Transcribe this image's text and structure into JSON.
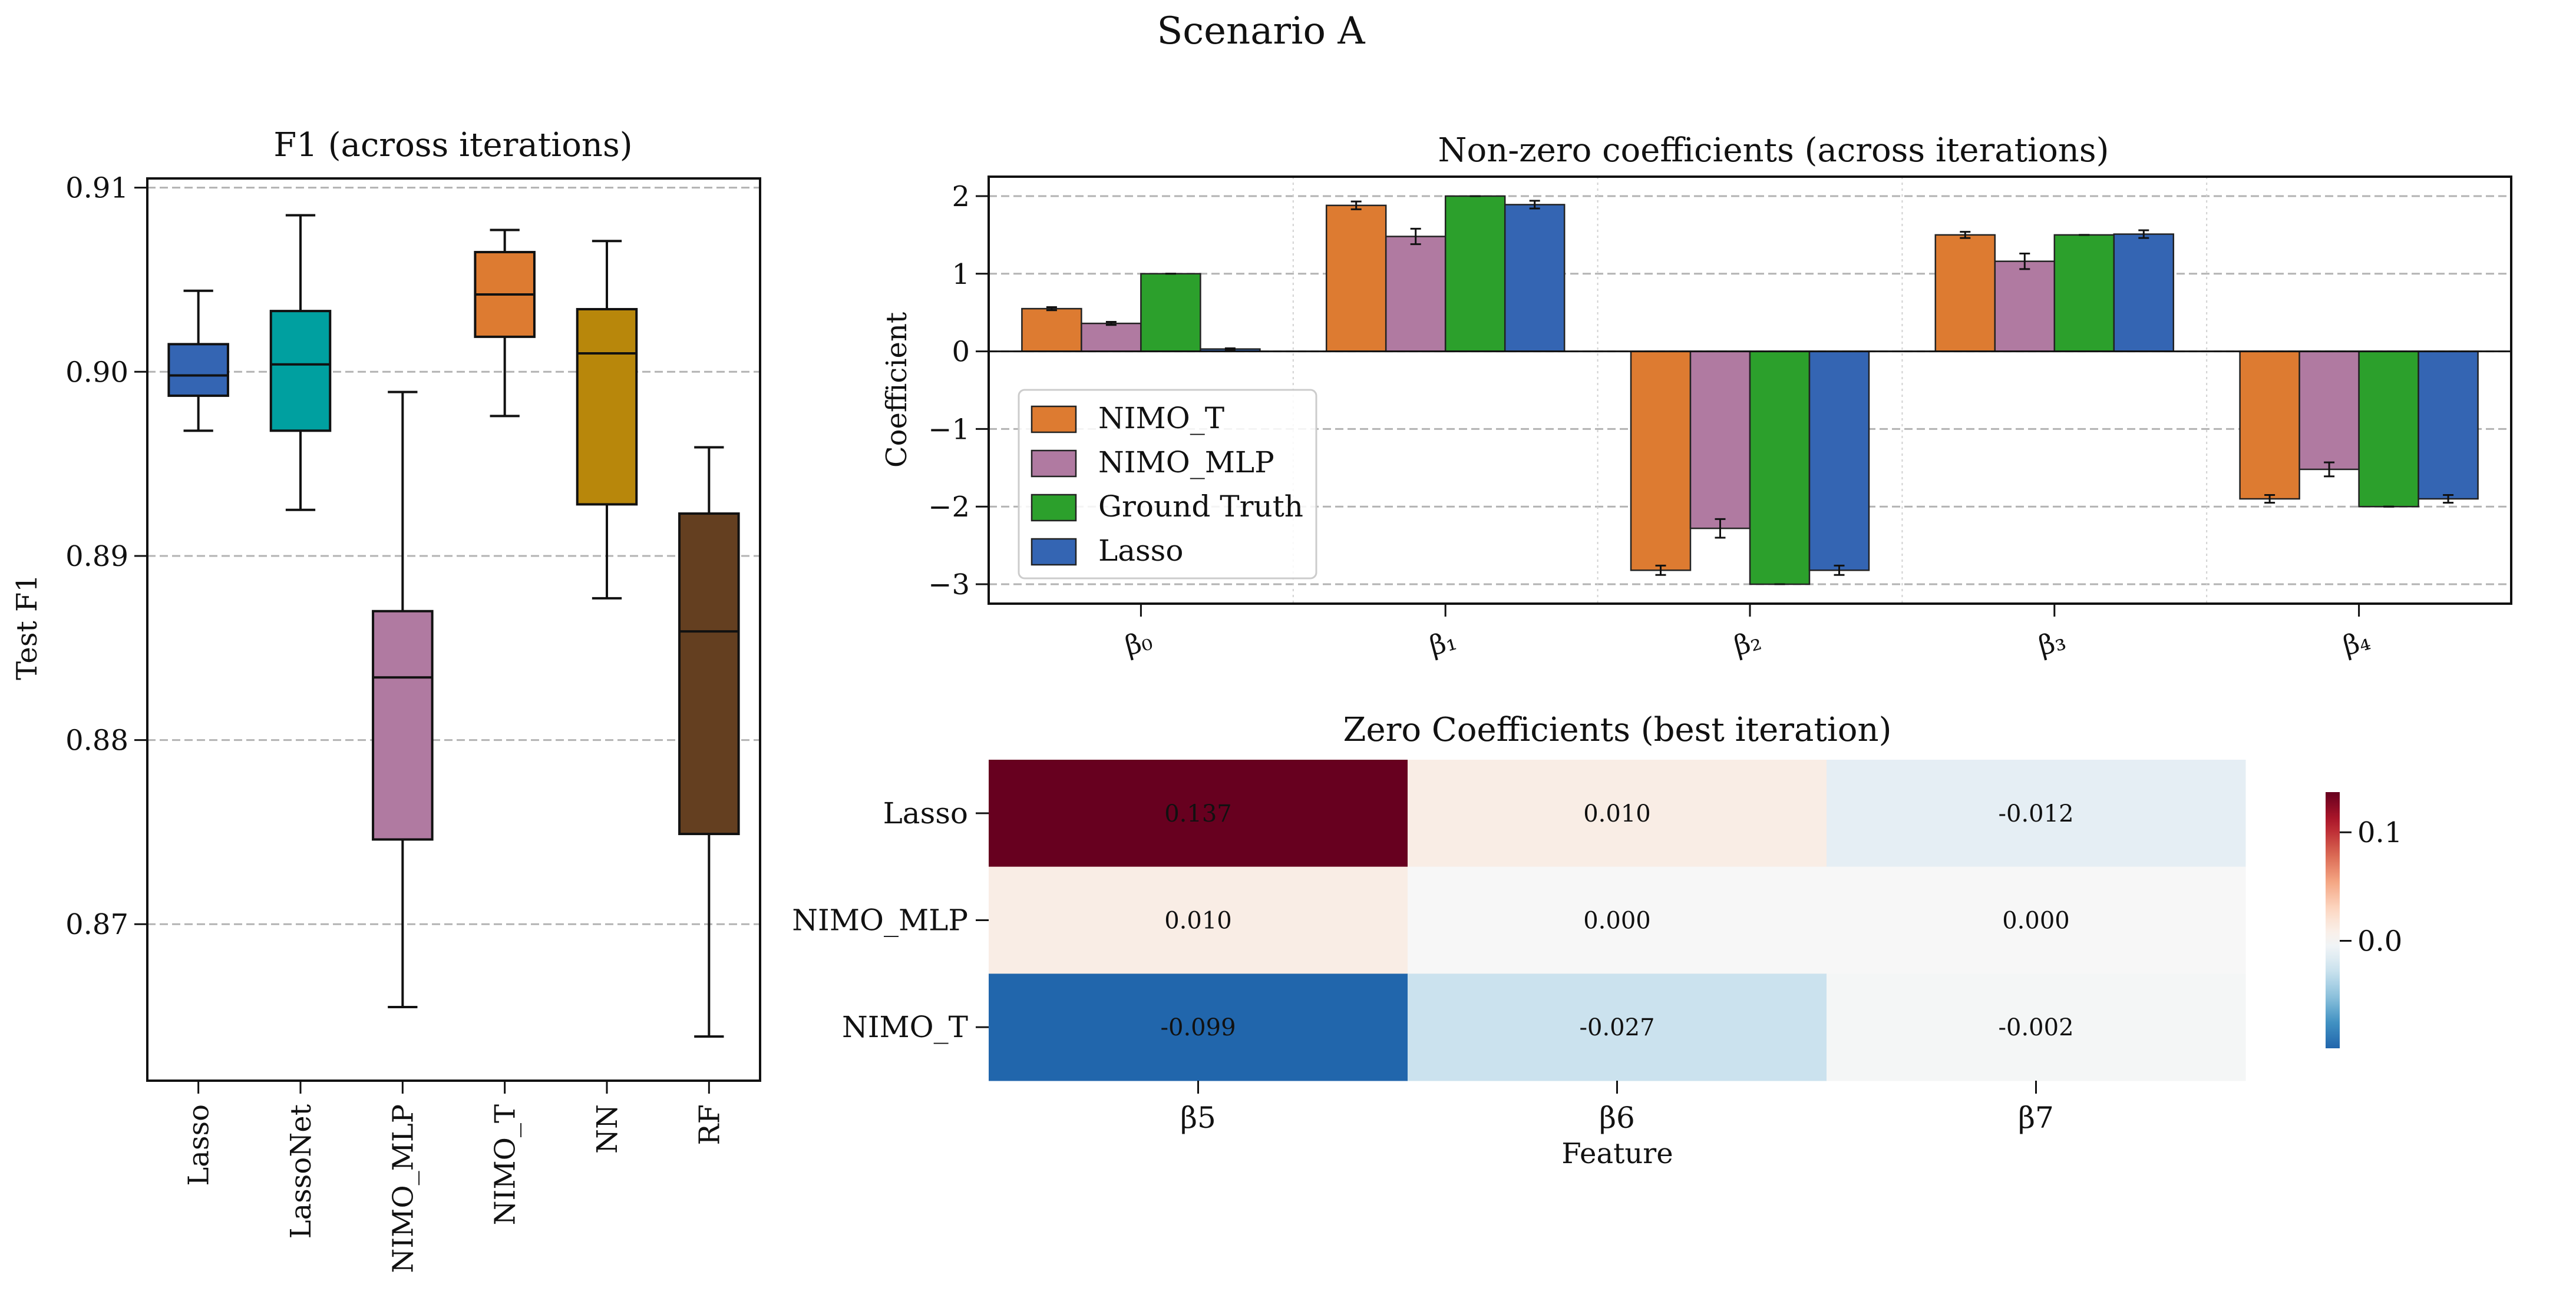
{
  "figure": {
    "title": "Scenario A"
  },
  "chart_data": [
    {
      "type": "box",
      "title": "F1 (across iterations)",
      "ylabel": "Test F1",
      "xlabel": "",
      "ylim": [
        0.8615,
        0.9105
      ],
      "yticks": [
        0.87,
        0.88,
        0.89,
        0.9,
        0.91
      ],
      "ytick_labels": [
        "0.87",
        "0.88",
        "0.89",
        "0.90",
        "0.91"
      ],
      "grid": "y-dashed",
      "categories": [
        "Lasso",
        "LassoNet",
        "NIMO_MLP",
        "NIMO_T",
        "NN",
        "RF"
      ],
      "boxes": [
        {
          "name": "Lasso",
          "whislo": 0.8968,
          "q1": 0.8987,
          "med": 0.8998,
          "q3": 0.9015,
          "whishi": 0.9044,
          "color": "#3465b3"
        },
        {
          "name": "LassoNet",
          "whislo": 0.8925,
          "q1": 0.8968,
          "med": 0.9004,
          "q3": 0.9033,
          "whishi": 0.9085,
          "color": "#00a0a0"
        },
        {
          "name": "NIMO_MLP",
          "whislo": 0.8655,
          "q1": 0.8746,
          "med": 0.8834,
          "q3": 0.887,
          "whishi": 0.8989,
          "color": "#b07aa1"
        },
        {
          "name": "NIMO_T",
          "whislo": 0.8976,
          "q1": 0.9019,
          "med": 0.9042,
          "q3": 0.9065,
          "whishi": 0.9077,
          "color": "#dd7b31"
        },
        {
          "name": "NN",
          "whislo": 0.8877,
          "q1": 0.8928,
          "med": 0.901,
          "q3": 0.9034,
          "whishi": 0.9071,
          "color": "#b8870b"
        },
        {
          "name": "RF",
          "whislo": 0.8639,
          "q1": 0.8749,
          "med": 0.8859,
          "q3": 0.8923,
          "whishi": 0.8959,
          "color": "#643f20"
        }
      ]
    },
    {
      "type": "bar",
      "title": "Non-zero coefficients (across iterations)",
      "ylabel": "Coefficient",
      "xlabel": "",
      "ylim": [
        -3.25,
        2.25
      ],
      "yticks": [
        -3,
        -2,
        -1,
        0,
        1,
        2
      ],
      "ytick_labels": [
        "−3",
        "−2",
        "−1",
        "0",
        "1",
        "2"
      ],
      "grid": "y-dashed",
      "legend": "center-left",
      "categories": [
        "β₀",
        "β₁",
        "β₂",
        "β₃",
        "β₄"
      ],
      "series": [
        {
          "name": "NIMO_T",
          "color": "#dd7b31",
          "values": [
            0.55,
            1.88,
            -2.82,
            1.5,
            -1.9
          ],
          "errors": [
            0.02,
            0.05,
            0.06,
            0.04,
            0.05
          ]
        },
        {
          "name": "NIMO_MLP",
          "color": "#b07aa1",
          "values": [
            0.36,
            1.48,
            -2.28,
            1.16,
            -1.52
          ],
          "errors": [
            0.02,
            0.1,
            0.12,
            0.1,
            0.09
          ]
        },
        {
          "name": "Ground Truth",
          "color": "#2ca02c",
          "values": [
            1.0,
            2.0,
            -3.0,
            1.5,
            -2.0
          ],
          "errors": [
            0.0,
            0.0,
            0.0,
            0.0,
            0.0
          ]
        },
        {
          "name": "Lasso",
          "color": "#3465b3",
          "values": [
            0.03,
            1.89,
            -2.82,
            1.51,
            -1.9
          ],
          "errors": [
            0.01,
            0.05,
            0.06,
            0.05,
            0.05
          ]
        }
      ]
    },
    {
      "type": "heatmap",
      "title": "Zero Coefficients (best iteration)",
      "xlabel": "Feature",
      "ylabel": "",
      "rows": [
        "Lasso",
        "NIMO_MLP",
        "NIMO_T"
      ],
      "columns": [
        "β5",
        "β6",
        "β7"
      ],
      "values": [
        [
          0.137,
          0.01,
          -0.012
        ],
        [
          0.01,
          0.0,
          0.0
        ],
        [
          -0.099,
          -0.027,
          -0.002
        ]
      ],
      "value_labels": [
        [
          "0.137",
          "0.010",
          "-0.012"
        ],
        [
          "0.010",
          "0.000",
          "0.000"
        ],
        [
          "-0.099",
          "-0.027",
          "-0.002"
        ]
      ],
      "colorbar": {
        "range": [
          -0.099,
          0.137
        ],
        "ticks": [
          0.0,
          0.1
        ],
        "tick_labels": [
          "0.0",
          "0.1"
        ],
        "colormap": "RdBu_r"
      }
    }
  ]
}
